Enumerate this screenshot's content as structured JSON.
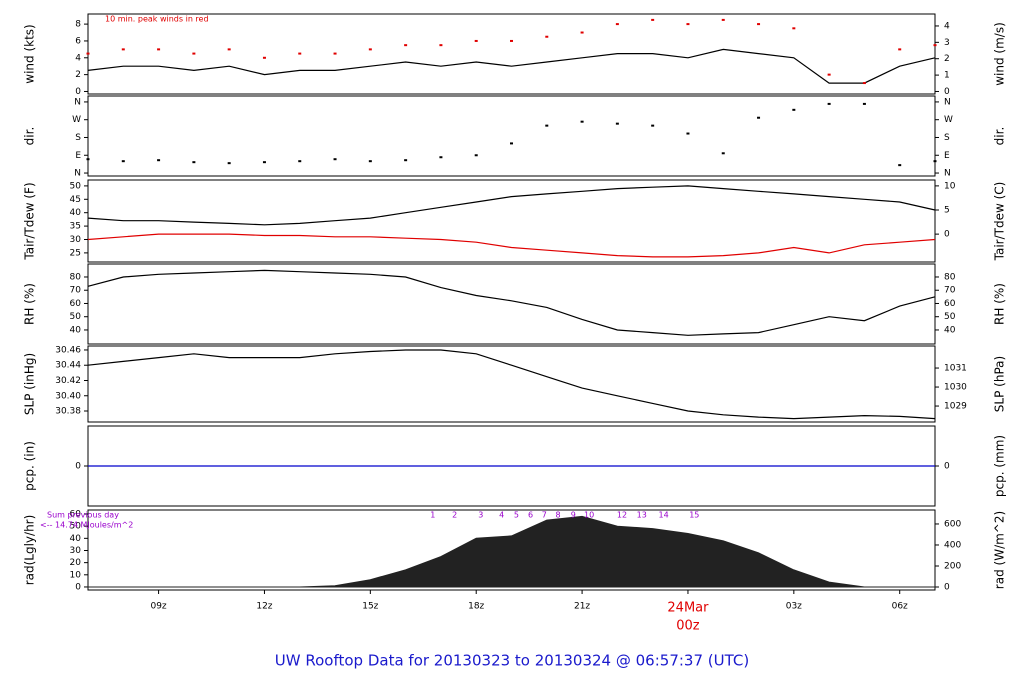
{
  "page_title": "UW Rooftop Data for 20130323  to  20130324 @ 06:57:37  (UTC)",
  "chart_data": [
    {
      "type": "line",
      "ylabel": "wind (kts)",
      "y2label": "wind (m/s)",
      "annotation": "10 min. peak winds in red",
      "x": [
        7,
        8,
        9,
        10,
        11,
        12,
        13,
        14,
        15,
        16,
        17,
        18,
        19,
        20,
        21,
        22,
        23,
        24,
        25,
        26,
        27,
        28,
        29,
        30,
        31
      ],
      "xlim": [
        7,
        31
      ],
      "series": [
        {
          "type": "line",
          "color": "#000000",
          "values": [
            2.5,
            3,
            3,
            2.5,
            3,
            2,
            2.5,
            2.5,
            3,
            3.5,
            3,
            3.5,
            3,
            3.5,
            4,
            4.5,
            4.5,
            4,
            5,
            4.5,
            4,
            1,
            1,
            3,
            4
          ]
        },
        {
          "type": "scatter",
          "color": "#e00000",
          "values": [
            4.5,
            5,
            5,
            4.5,
            5,
            4,
            4.5,
            4.5,
            5,
            5.5,
            5.5,
            6,
            6,
            6.5,
            7,
            8,
            8.5,
            8,
            8.5,
            8,
            7.5,
            2,
            1,
            5,
            5.5
          ]
        }
      ],
      "ylim": [
        -0.3,
        9.2
      ],
      "yticks": [
        0,
        2,
        4,
        6,
        8
      ],
      "y2lim": [
        -0.154,
        4.73
      ],
      "y2ticks": [
        0,
        1,
        2,
        3,
        4
      ]
    },
    {
      "type": "scatter",
      "ylabel": "dir.",
      "y2label": "dir.",
      "x": [
        7,
        8,
        9,
        10,
        11,
        12,
        13,
        14,
        15,
        16,
        17,
        18,
        19,
        20,
        21,
        22,
        23,
        24,
        25,
        26,
        27,
        28,
        29,
        30,
        31
      ],
      "xlim": [
        7,
        31
      ],
      "series": [
        {
          "type": "scatter",
          "color": "#000000",
          "values": [
            70,
            60,
            65,
            55,
            50,
            55,
            60,
            70,
            60,
            65,
            80,
            90,
            150,
            240,
            260,
            250,
            240,
            200,
            100,
            280,
            320,
            350,
            350,
            40,
            60
          ]
        }
      ],
      "ylim": [
        -15,
        390
      ],
      "yticks": [
        {
          "value": 0,
          "label": "N"
        },
        {
          "value": 90,
          "label": "E"
        },
        {
          "value": 180,
          "label": "S"
        },
        {
          "value": 270,
          "label": "W"
        },
        {
          "value": 360,
          "label": "N"
        }
      ],
      "y2lim": [
        -15,
        390
      ],
      "y2ticks": [
        {
          "value": 0,
          "label": "N"
        },
        {
          "value": 90,
          "label": "E"
        },
        {
          "value": 180,
          "label": "S"
        },
        {
          "value": 270,
          "label": "W"
        },
        {
          "value": 360,
          "label": "N"
        }
      ]
    },
    {
      "type": "line",
      "ylabel": "Tair/Tdew (F)",
      "y2label": "Tair/Tdew (C)",
      "x": [
        7,
        8,
        9,
        10,
        11,
        12,
        13,
        14,
        15,
        16,
        17,
        18,
        19,
        20,
        21,
        22,
        23,
        24,
        25,
        26,
        27,
        28,
        29,
        30,
        31
      ],
      "xlim": [
        7,
        31
      ],
      "series": [
        {
          "type": "line",
          "color": "#000000",
          "values": [
            38,
            37,
            37,
            36.5,
            36,
            35.5,
            36,
            37,
            38,
            40,
            42,
            44,
            46,
            47,
            48,
            49,
            49.5,
            50,
            49,
            48,
            47,
            46,
            45,
            44,
            41
          ]
        },
        {
          "type": "line",
          "color": "#e00000",
          "values": [
            30,
            31,
            32,
            32,
            32,
            31.5,
            31.5,
            31,
            31,
            30.5,
            30,
            29,
            27,
            26,
            25,
            24,
            23.5,
            23.5,
            24,
            25,
            27,
            25,
            28,
            29,
            30
          ]
        }
      ],
      "ylim": [
        21.6,
        52.2
      ],
      "yticks": [
        25,
        30,
        35,
        40,
        45,
        50
      ],
      "y2lim": [
        -5.78,
        11.22
      ],
      "y2ticks": [
        0,
        5,
        10
      ]
    },
    {
      "type": "line",
      "ylabel": "RH (%)",
      "y2label": "RH (%)",
      "x": [
        7,
        8,
        9,
        10,
        11,
        12,
        13,
        14,
        15,
        16,
        17,
        18,
        19,
        20,
        21,
        22,
        23,
        24,
        25,
        26,
        27,
        28,
        29,
        30,
        31
      ],
      "xlim": [
        7,
        31
      ],
      "series": [
        {
          "type": "line",
          "color": "#000000",
          "values": [
            73,
            80,
            82,
            83,
            84,
            85,
            84,
            83,
            82,
            80,
            72,
            66,
            62,
            57,
            48,
            40,
            38,
            36,
            37,
            38,
            44,
            50,
            47,
            58,
            65
          ]
        }
      ],
      "ylim": [
        29.4,
        89.8
      ],
      "yticks": [
        40,
        50,
        60,
        70,
        80
      ],
      "y2lim": [
        29.4,
        89.8
      ],
      "y2ticks": [
        40,
        50,
        60,
        70,
        80
      ]
    },
    {
      "type": "line",
      "ylabel": "SLP (inHg)",
      "y2label": "SLP (hPa)",
      "x": [
        7,
        8,
        9,
        10,
        11,
        12,
        13,
        14,
        15,
        16,
        17,
        18,
        19,
        20,
        21,
        22,
        23,
        24,
        25,
        26,
        27,
        28,
        29,
        30,
        31
      ],
      "xlim": [
        7,
        31
      ],
      "series": [
        {
          "type": "line",
          "color": "#000000",
          "values": [
            30.44,
            30.445,
            30.45,
            30.455,
            30.45,
            30.45,
            30.45,
            30.455,
            30.458,
            30.46,
            30.46,
            30.455,
            30.44,
            30.425,
            30.41,
            30.4,
            30.39,
            30.38,
            30.375,
            30.372,
            30.37,
            30.372,
            30.374,
            30.373,
            30.37
          ]
        }
      ],
      "ylim": [
        30.3656,
        30.4652
      ],
      "yticks": [
        30.38,
        {
          "value": 30.4,
          "label": "30.40"
        },
        30.42,
        30.44,
        30.46
      ],
      "y2lim": [
        1028.16,
        1032.16
      ],
      "y2ticks": [
        1029,
        1030,
        1031
      ]
    },
    {
      "type": "line",
      "ylabel": "pcp. (in)",
      "y2label": "pcp. (mm)",
      "x": [
        7,
        8,
        9,
        10,
        11,
        12,
        13,
        14,
        15,
        16,
        17,
        18,
        19,
        20,
        21,
        22,
        23,
        24,
        25,
        26,
        27,
        28,
        29,
        30,
        31
      ],
      "xlim": [
        7,
        31
      ],
      "series": [
        {
          "type": "line",
          "color": "#0000cc",
          "values": [
            0,
            0,
            0,
            0,
            0,
            0,
            0,
            0,
            0,
            0,
            0,
            0,
            0,
            0,
            0,
            0,
            0,
            0,
            0,
            0,
            0,
            0,
            0,
            0,
            0
          ]
        }
      ],
      "ylim": [
        -1,
        1
      ],
      "yticks": [
        0
      ],
      "y2lim": [
        -25.4,
        25.4
      ],
      "y2ticks": [
        0
      ]
    },
    {
      "type": "area",
      "ylabel": "rad(Lgly/hr)",
      "y2label": "rad (W/m^2)",
      "notes": [
        "Sum previous day",
        "<-- 14.74 MJoules/m^2"
      ],
      "markers": [
        {
          "x": 16.77,
          "text": "1"
        },
        {
          "x": 17.39,
          "text": "2"
        },
        {
          "x": 18.13,
          "text": "3"
        },
        {
          "x": 18.72,
          "text": "4"
        },
        {
          "x": 19.14,
          "text": "5"
        },
        {
          "x": 19.54,
          "text": "6"
        },
        {
          "x": 19.93,
          "text": "7"
        },
        {
          "x": 20.32,
          "text": "8"
        },
        {
          "x": 20.75,
          "text": "9"
        },
        {
          "x": 21.2,
          "text": "10"
        },
        {
          "x": 22.13,
          "text": "12"
        },
        {
          "x": 22.69,
          "text": "13"
        },
        {
          "x": 23.31,
          "text": "14"
        },
        {
          "x": 24.18,
          "text": "15"
        }
      ],
      "x": [
        7,
        8,
        9,
        10,
        11,
        12,
        13,
        14,
        15,
        16,
        17,
        18,
        19,
        20,
        21,
        22,
        23,
        24,
        25,
        26,
        27,
        28,
        29,
        30,
        31
      ],
      "xlim": [
        7,
        31
      ],
      "series": [
        {
          "type": "area",
          "color": "#222222",
          "values": [
            0,
            0,
            0,
            0,
            0,
            0,
            0,
            1,
            6,
            14,
            25,
            40,
            42,
            55,
            58,
            50,
            48,
            44,
            38,
            28,
            14,
            4,
            0,
            0,
            0
          ]
        }
      ],
      "ylim": [
        -2.5,
        63.3
      ],
      "yticks": [
        0,
        10,
        20,
        30,
        40,
        50,
        60
      ],
      "y2lim": [
        -28.6,
        733
      ],
      "y2ticks": [
        0,
        200,
        400,
        600
      ],
      "xticks": [
        {
          "value": 9,
          "label": "09z"
        },
        {
          "value": 12,
          "label": "12z"
        },
        {
          "value": 15,
          "label": "15z"
        },
        {
          "value": 18,
          "label": "18z"
        },
        {
          "value": 21,
          "label": "21z"
        },
        {
          "value": 24,
          "label": "00z",
          "color": "#e00000"
        },
        {
          "value": 27,
          "label": "03z"
        },
        {
          "value": 30,
          "label": "06z"
        }
      ],
      "date_label": {
        "x": 24,
        "text": "24Mar",
        "color": "#e00000"
      }
    }
  ]
}
